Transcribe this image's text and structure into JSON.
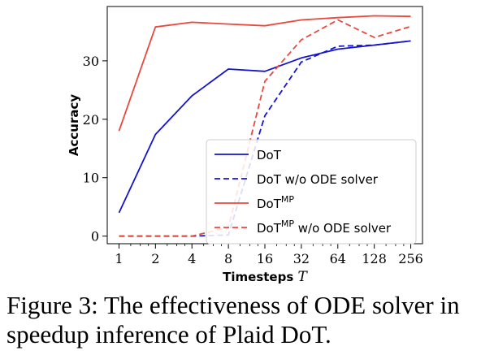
{
  "chart_data": {
    "type": "line",
    "xlabel": "Timesteps",
    "xlabel_var": "T",
    "ylabel": "Accuracy",
    "x_scale": "log2",
    "x": [
      1,
      2,
      4,
      8,
      16,
      32,
      64,
      128,
      256
    ],
    "x_tick_labels": [
      "1",
      "2",
      "4",
      "8",
      "16",
      "32",
      "64",
      "128",
      "256"
    ],
    "y_ticks": [
      0,
      10,
      20,
      30
    ],
    "xlim": [
      0.8,
      320
    ],
    "ylim": [
      -1.3,
      39.3
    ],
    "grid": false,
    "legend_position": "bottom-right",
    "series": [
      {
        "name": "DoT",
        "name_sup": "",
        "name_suffix": "",
        "color": "#1414cc",
        "dash": "solid",
        "values": [
          4.0,
          17.4,
          24.0,
          28.6,
          28.2,
          30.5,
          32.0,
          32.7,
          33.4
        ]
      },
      {
        "name": "DoT",
        "name_sup": "",
        "name_suffix": " w/o ODE solver",
        "color": "#1414cc",
        "dash": "dashed",
        "values": [
          0.0,
          0.0,
          0.0,
          0.2,
          20.6,
          29.8,
          32.5,
          32.7,
          33.4
        ]
      },
      {
        "name": "DoT",
        "name_sup": "MP",
        "name_suffix": "",
        "color": "#e8493c",
        "dash": "solid",
        "values": [
          18.0,
          35.8,
          36.6,
          36.3,
          36.0,
          37.0,
          37.4,
          37.7,
          37.6
        ]
      },
      {
        "name": "DoT",
        "name_sup": "MP",
        "name_suffix": " w/o ODE solver",
        "color": "#e8493c",
        "dash": "dashed",
        "values": [
          0.0,
          0.0,
          0.0,
          1.5,
          26.5,
          33.6,
          37.0,
          34.0,
          35.9
        ]
      }
    ]
  },
  "caption": "Figure 3: The effectiveness of ODE solver in speedup inference of Plaid DoT."
}
